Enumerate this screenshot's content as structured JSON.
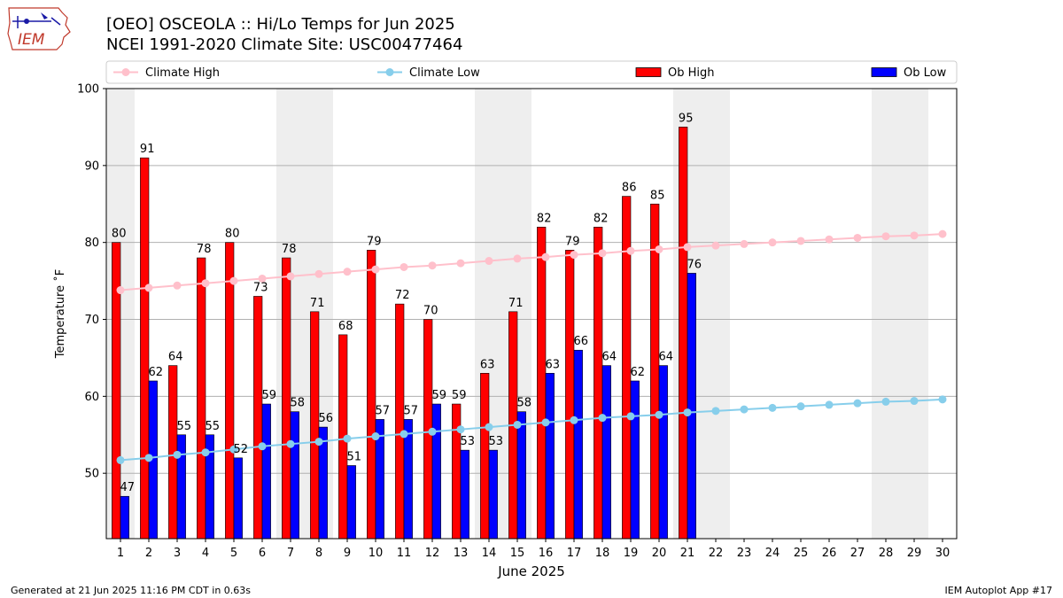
{
  "header": {
    "title_line1": "[OEO] OSCEOLA :: Hi/Lo Temps for Jun 2025",
    "title_line2": "NCEI 1991-2020 Climate Site: USC00477464",
    "logo_text": "IEM"
  },
  "footer": {
    "left": "Generated at 21 Jun 2025 11:16 PM CDT in 0.63s",
    "right": "IEM Autoplot App #17"
  },
  "colors": {
    "ob_high": "#ff0000",
    "ob_low": "#0000ff",
    "climate_high": "#ffc0cb",
    "climate_low": "#87ceeb",
    "weekend_shade": "#eeeeee",
    "grid": "#b0b0b0"
  },
  "chart_data": {
    "type": "bar",
    "xlabel": "June 2025",
    "ylabel": "Temperature ˚F",
    "ylim": [
      41.5,
      100
    ],
    "yticks": [
      50,
      60,
      70,
      80,
      90,
      100
    ],
    "grid": "horizontal",
    "legend_position": "top",
    "categories": [
      "1",
      "2",
      "3",
      "4",
      "5",
      "6",
      "7",
      "8",
      "9",
      "10",
      "11",
      "12",
      "13",
      "14",
      "15",
      "16",
      "17",
      "18",
      "19",
      "20",
      "21",
      "22",
      "23",
      "24",
      "25",
      "26",
      "27",
      "28",
      "29",
      "30"
    ],
    "weekend_days": [
      1,
      7,
      8,
      14,
      15,
      21,
      22,
      28,
      29
    ],
    "series": [
      {
        "name": "Climate High",
        "kind": "line",
        "values": [
          73.8,
          74.1,
          74.4,
          74.7,
          75.0,
          75.3,
          75.6,
          75.9,
          76.2,
          76.5,
          76.8,
          77.0,
          77.3,
          77.6,
          77.9,
          78.1,
          78.4,
          78.6,
          78.9,
          79.1,
          79.4,
          79.6,
          79.8,
          80.0,
          80.2,
          80.4,
          80.6,
          80.8,
          80.9,
          81.1
        ]
      },
      {
        "name": "Climate Low",
        "kind": "line",
        "values": [
          51.7,
          52.0,
          52.4,
          52.7,
          53.1,
          53.5,
          53.8,
          54.1,
          54.5,
          54.8,
          55.1,
          55.4,
          55.7,
          56.0,
          56.3,
          56.6,
          56.9,
          57.2,
          57.4,
          57.6,
          57.9,
          58.1,
          58.3,
          58.5,
          58.7,
          58.9,
          59.1,
          59.3,
          59.4,
          59.6
        ]
      },
      {
        "name": "Ob High",
        "kind": "bar",
        "values": [
          80,
          91,
          64,
          78,
          80,
          73,
          78,
          71,
          68,
          79,
          72,
          70,
          59,
          63,
          71,
          82,
          79,
          82,
          86,
          85,
          95,
          null,
          null,
          null,
          null,
          null,
          null,
          null,
          null,
          null
        ]
      },
      {
        "name": "Ob Low",
        "kind": "bar",
        "values": [
          47,
          62,
          55,
          55,
          52,
          59,
          58,
          56,
          51,
          57,
          57,
          59,
          53,
          53,
          58,
          63,
          66,
          64,
          62,
          64,
          76,
          null,
          null,
          null,
          null,
          null,
          null,
          null,
          null,
          null
        ]
      }
    ]
  }
}
